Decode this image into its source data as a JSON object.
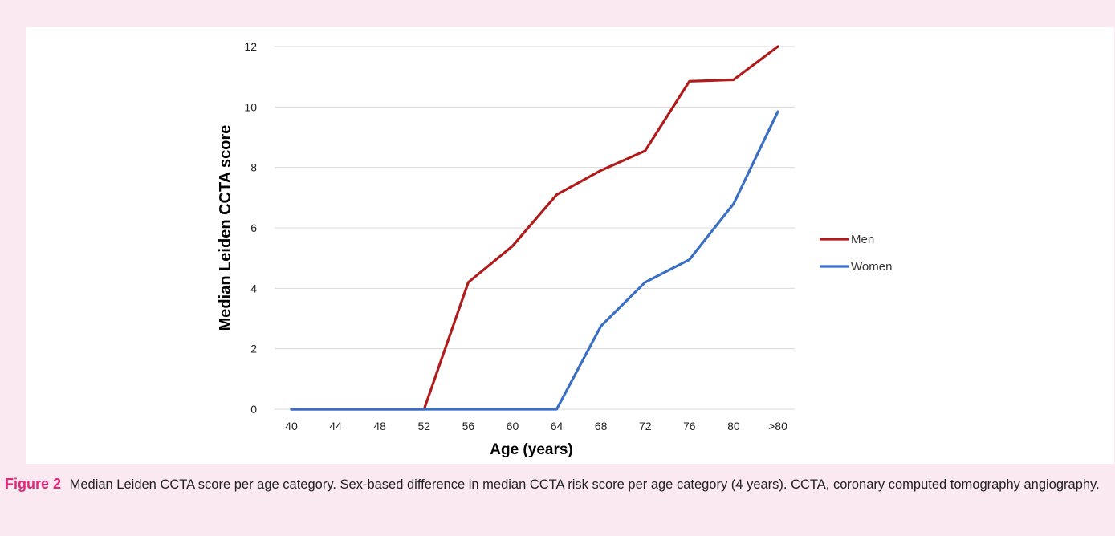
{
  "chart_data": {
    "type": "line",
    "categories": [
      "40",
      "44",
      "48",
      "52",
      "56",
      "60",
      "64",
      "68",
      "72",
      "76",
      "80",
      ">80"
    ],
    "series": [
      {
        "name": "Men",
        "color": "#b01c1c",
        "values": [
          0,
          0,
          0,
          0,
          4.2,
          5.4,
          7.1,
          7.9,
          8.55,
          10.85,
          10.9,
          12
        ]
      },
      {
        "name": "Women",
        "color": "#3a6fc4",
        "values": [
          0,
          0,
          0,
          0,
          0,
          0,
          0,
          2.75,
          4.2,
          4.95,
          6.8,
          9.85
        ]
      }
    ],
    "xlabel": "Age (years)",
    "ylabel": "Median Leiden CCTA score",
    "ylim": [
      0,
      12
    ],
    "yticks": [
      0,
      2,
      4,
      6,
      8,
      10,
      12
    ],
    "grid": true,
    "legend_position": "right"
  },
  "caption": {
    "label": "Figure 2",
    "text": "Median Leiden CCTA score per age category. Sex-based difference in median CCTA risk score per age category (4 years). CCTA, coronary computed tomography angiography."
  }
}
